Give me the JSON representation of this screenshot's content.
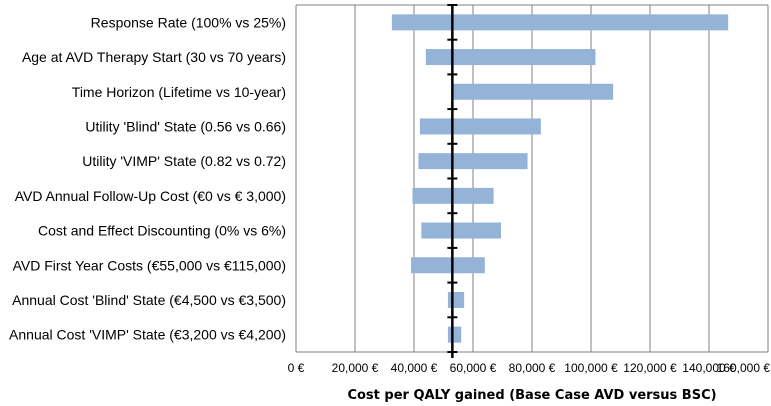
{
  "chart_data": {
    "type": "bar",
    "subtype": "tornado",
    "orientation": "horizontal",
    "categories": [
      "Response Rate (100% vs 25%)",
      "Age at AVD Therapy Start (30 vs 70 years)",
      "Time Horizon (Lifetime vs 10-year)",
      "Utility 'Blind' State (0.56 vs 0.66)",
      "Utility 'VIMP' State (0.82 vs 0.72)",
      "AVD Annual Follow-Up Cost (€0 vs € 3,000)",
      "Cost and Effect Discounting (0% vs 6%)",
      "AVD First Year Costs (€55,000 vs €115,000)",
      "Annual Cost 'Blind' State (€4,500 vs €3,500)",
      "Annual Cost 'VIMP' State (€3,200 vs €4,200)"
    ],
    "ranges": [
      [
        32500,
        146500
      ],
      [
        44000,
        101500
      ],
      [
        53000,
        107500
      ],
      [
        42000,
        83000
      ],
      [
        41500,
        78500
      ],
      [
        39500,
        67000
      ],
      [
        42500,
        69500
      ],
      [
        39000,
        64000
      ],
      [
        51500,
        57000
      ],
      [
        51500,
        56000
      ]
    ],
    "base_case": 53000,
    "xlim": [
      0,
      160000
    ],
    "x_ticks": [
      0,
      20000,
      40000,
      60000,
      80000,
      100000,
      120000,
      140000,
      160000
    ],
    "x_tick_labels": [
      "0 €",
      "20,000 €",
      "40,000 €",
      "60,000 €",
      "80,000 €",
      "100,000 €",
      "120,000 €",
      "140,000 €",
      "160,000 €"
    ],
    "xlabel": "Cost per QALY gained (Base Case AVD versus BSC)",
    "ylabel": "",
    "title": "",
    "grid": "vertical",
    "legend": "none",
    "colors": {
      "bar": "#95b3d7",
      "grid": "#808080",
      "baseline": "#000000",
      "background": "#ffffff"
    }
  }
}
